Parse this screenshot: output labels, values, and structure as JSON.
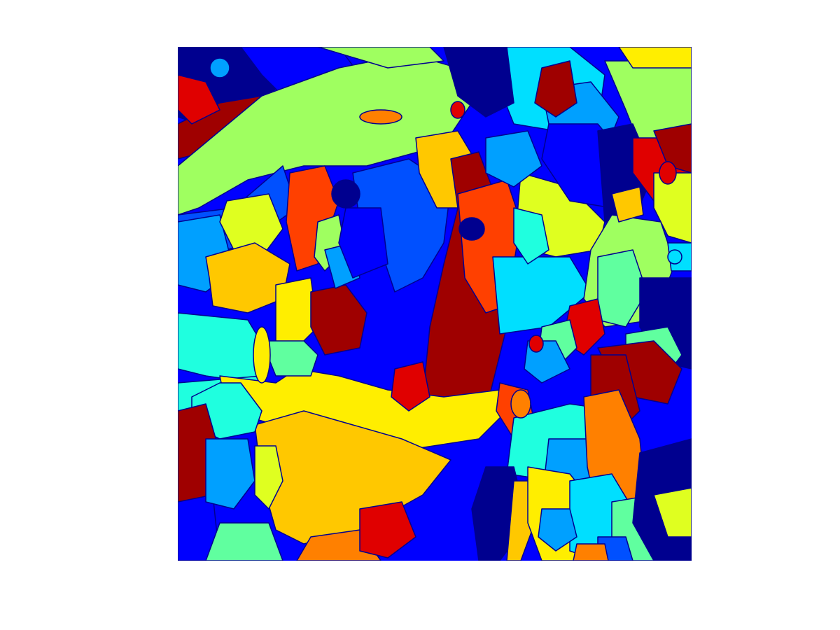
{
  "figure": {
    "background": "#ffffff",
    "image_kind": "segmentation label map (jet colormap)"
  },
  "palette": {
    "navy": "#00008f",
    "blue": "#0000ff",
    "azure": "#0050ff",
    "sky": "#00a0ff",
    "cyan": "#00dfff",
    "aqua": "#1fffdf",
    "mint": "#60ff9f",
    "lime": "#9fff60",
    "chartreuse": "#dfff20",
    "yellow": "#ffee00",
    "gold": "#ffc800",
    "orange": "#ff8000",
    "vermilion": "#ff4000",
    "red": "#e00000",
    "maroon": "#9f0000"
  }
}
